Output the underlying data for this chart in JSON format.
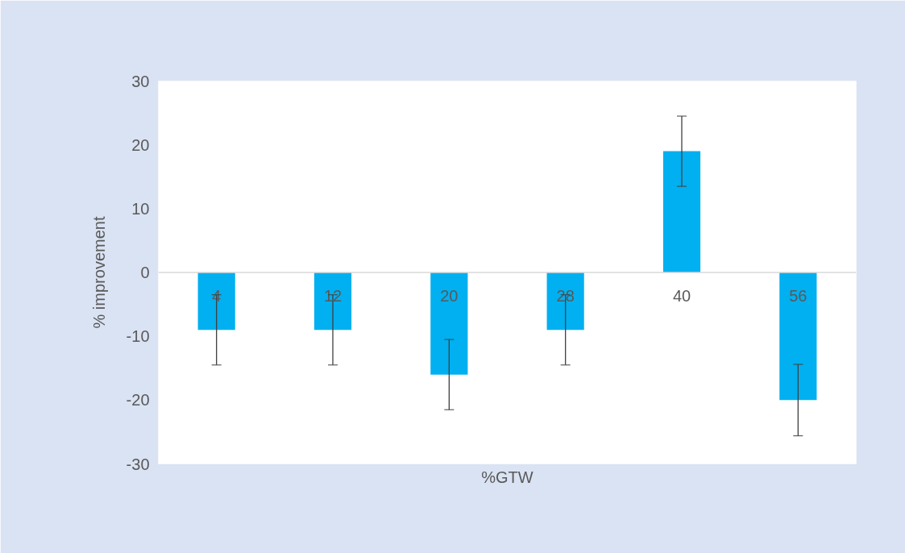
{
  "chart_data": {
    "type": "bar",
    "xlabel": "%GTW",
    "ylabel": "% improvement",
    "categories": [
      "4",
      "12",
      "20",
      "28",
      "40",
      "56"
    ],
    "values": [
      -9,
      -9,
      -16,
      -9,
      19,
      -20
    ],
    "errors": [
      5.5,
      5.5,
      5.5,
      5.5,
      5.5,
      5.6
    ],
    "color": "#00b0f0",
    "ylim": [
      -30,
      30
    ],
    "yticks": [
      -30,
      -20,
      -10,
      0,
      10,
      20,
      30
    ],
    "grid": false
  }
}
